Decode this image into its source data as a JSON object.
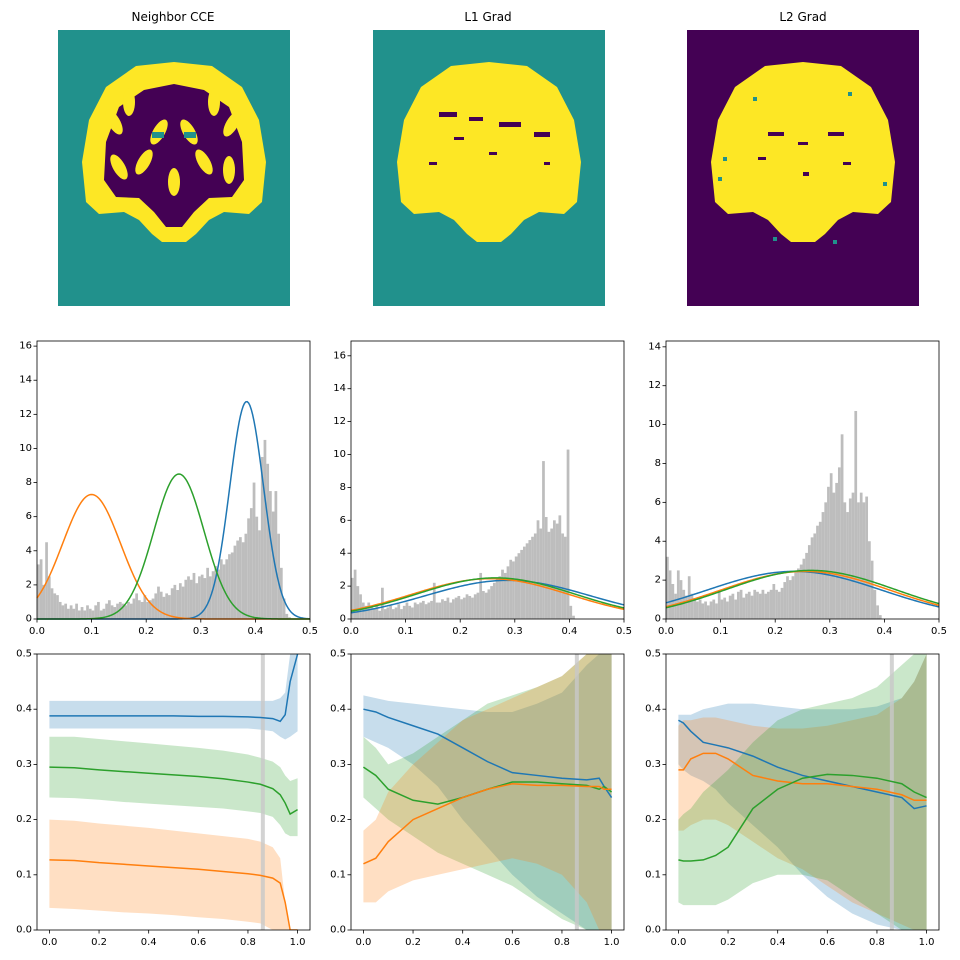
{
  "panel_titles": [
    "Neighbor CCE",
    "L1 Grad",
    "L2 Grad"
  ],
  "colors": {
    "blue": "#1f77b4",
    "orange": "#ff7f0e",
    "green": "#2ca02c",
    "hist_gray": "#bdbdbd",
    "viridis_dark": "#440154",
    "viridis_teal": "#21918c",
    "viridis_yellow": "#fde725",
    "threshold_line": "#c8c8c8"
  },
  "segmentation_maps": [
    {
      "background": "teal",
      "brain_fill": "yellow",
      "inner_structure": "dark"
    },
    {
      "background": "teal",
      "brain_fill": "yellow",
      "inner_structure": "dark-sparse"
    },
    {
      "background": "dark",
      "brain_fill": "yellow",
      "inner_structure": "dark-sparse"
    }
  ],
  "chart_data": [
    {
      "type": "bar+line",
      "panel": "Neighbor CCE histogram",
      "xlim": [
        0,
        0.5
      ],
      "ylim": [
        0,
        16.3
      ],
      "xticks": [
        "0.0",
        "0.1",
        "0.2",
        "0.3",
        "0.4",
        "0.5"
      ],
      "yticks": [
        "0",
        "2",
        "4",
        "6",
        "8",
        "10",
        "12",
        "14",
        "16"
      ],
      "gaussians": [
        {
          "color": "blue",
          "mean": 0.384,
          "sd": 0.031,
          "peak": 12.75
        },
        {
          "color": "orange",
          "mean": 0.1,
          "sd": 0.053,
          "peak": 7.3
        },
        {
          "color": "green",
          "mean": 0.26,
          "sd": 0.046,
          "peak": 8.5
        }
      ],
      "histogram_values": [
        3.2,
        3.5,
        2.0,
        4.5,
        2.5,
        1.8,
        1.5,
        1.4,
        1.0,
        0.8,
        0.9,
        0.6,
        0.8,
        0.6,
        0.9,
        0.5,
        0.7,
        0.5,
        0.8,
        0.6,
        0.5,
        0.8,
        1.0,
        0.5,
        0.6,
        0.9,
        1.1,
        0.8,
        0.7,
        0.9,
        1.0,
        0.9,
        0.8,
        1.0,
        0.9,
        1.2,
        1.5,
        1.1,
        1.0,
        1.4,
        1.0,
        1.1,
        1.2,
        1.5,
        1.9,
        1.6,
        1.3,
        1.5,
        1.4,
        1.8,
        2.0,
        1.7,
        2.1,
        1.9,
        2.3,
        2.5,
        2.3,
        2.7,
        2.1,
        2.5,
        2.6,
        2.4,
        3.0,
        2.5,
        2.8,
        3.1,
        2.9,
        3.5,
        3.2,
        3.5,
        3.8,
        3.9,
        4.3,
        4.6,
        4.8,
        4.5,
        5.0,
        5.9,
        6.5,
        8.0,
        6.0,
        5.2,
        9.5,
        10.5,
        9.1,
        7.5,
        6.3,
        7.5,
        5.0,
        3.0,
        1.2,
        0.3,
        0.1,
        0.0,
        0.0,
        0.0,
        0.0,
        0.0,
        0.0,
        0.0
      ]
    },
    {
      "type": "bar+line",
      "panel": "L1 Grad histogram",
      "xlim": [
        0,
        0.5
      ],
      "ylim": [
        0,
        16.9
      ],
      "xticks": [
        "0.0",
        "0.1",
        "0.2",
        "0.3",
        "0.4",
        "0.5"
      ],
      "yticks": [
        "0",
        "2",
        "4",
        "6",
        "8",
        "10",
        "12",
        "14",
        "16"
      ],
      "gaussians": [
        {
          "color": "blue",
          "mean": 0.287,
          "sd": 0.15,
          "peak": 2.35
        },
        {
          "color": "orange",
          "mean": 0.255,
          "sd": 0.145,
          "peak": 2.45
        },
        {
          "color": "green",
          "mean": 0.265,
          "sd": 0.145,
          "peak": 2.5
        }
      ],
      "histogram_values": [
        2.5,
        3.0,
        2.0,
        1.5,
        1.0,
        0.8,
        1.0,
        0.7,
        0.6,
        0.9,
        0.5,
        1.9,
        0.6,
        0.7,
        0.8,
        0.6,
        0.7,
        0.9,
        0.6,
        0.8,
        1.0,
        0.8,
        0.7,
        1.0,
        0.9,
        1.0,
        1.1,
        0.9,
        1.0,
        1.1,
        2.2,
        1.0,
        1.0,
        1.2,
        1.1,
        1.3,
        1.0,
        1.2,
        1.3,
        1.4,
        1.2,
        1.3,
        1.5,
        1.4,
        1.3,
        1.5,
        1.6,
        2.8,
        1.7,
        1.6,
        1.8,
        2.0,
        2.2,
        2.5,
        2.6,
        3.0,
        2.8,
        3.2,
        3.6,
        3.5,
        3.8,
        4.0,
        4.2,
        4.4,
        4.6,
        4.8,
        5.0,
        5.2,
        6.0,
        5.5,
        9.6,
        6.2,
        5.3,
        5.5,
        6.0,
        5.8,
        6.3,
        5.2,
        5.0,
        10.3,
        0.8,
        0.2,
        0.0,
        0.0,
        0.0,
        0.0,
        0.0,
        0.0,
        0.0,
        0.0,
        0.0,
        0.0,
        0.0,
        0.0,
        0.0,
        0.0,
        0.0,
        0.0,
        0.0,
        0.0
      ]
    },
    {
      "type": "bar+line",
      "panel": "L2 Grad histogram",
      "xlim": [
        0,
        0.5
      ],
      "ylim": [
        0,
        14.3
      ],
      "xticks": [
        "0.0",
        "0.1",
        "0.2",
        "0.3",
        "0.4",
        "0.5"
      ],
      "yticks": [
        "0",
        "2",
        "4",
        "6",
        "8",
        "10",
        "12",
        "14"
      ],
      "gaussians": [
        {
          "color": "blue",
          "mean": 0.235,
          "sd": 0.16,
          "peak": 2.45
        },
        {
          "color": "orange",
          "mean": 0.255,
          "sd": 0.155,
          "peak": 2.45
        },
        {
          "color": "green",
          "mean": 0.265,
          "sd": 0.155,
          "peak": 2.5
        }
      ],
      "histogram_values": [
        3.2,
        2.5,
        1.8,
        1.3,
        2.5,
        2.0,
        1.5,
        1.2,
        2.2,
        1.3,
        1.0,
        0.9,
        1.0,
        0.8,
        0.9,
        0.7,
        0.9,
        1.0,
        0.8,
        1.4,
        1.0,
        1.1,
        0.9,
        1.2,
        1.3,
        1.0,
        1.4,
        1.5,
        1.1,
        1.3,
        1.4,
        1.2,
        1.5,
        1.4,
        1.3,
        1.5,
        1.3,
        1.4,
        1.5,
        1.8,
        1.5,
        1.4,
        1.6,
        1.9,
        2.2,
        2.0,
        2.2,
        2.4,
        2.6,
        2.8,
        3.1,
        3.4,
        3.8,
        4.2,
        4.4,
        4.8,
        5.0,
        5.5,
        6.0,
        6.8,
        7.5,
        6.5,
        7.0,
        7.8,
        9.5,
        6.0,
        5.5,
        6.2,
        6.5,
        10.7,
        6.0,
        6.5,
        6.0,
        6.3,
        4.0,
        3.0,
        1.5,
        0.7,
        0.2,
        0.0,
        0.0,
        0.0,
        0.0,
        0.0,
        0.0,
        0.0,
        0.0,
        0.0,
        0.0,
        0.0,
        0.0,
        0.0,
        0.0,
        0.0,
        0.0,
        0.0,
        0.0,
        0.0,
        0.0,
        0.0
      ]
    },
    {
      "type": "line+band",
      "panel": "Neighbor CCE parameter trace",
      "xlim": [
        -0.05,
        1.05
      ],
      "ylim": [
        0,
        0.5
      ],
      "xticks": [
        "0.0",
        "0.2",
        "0.4",
        "0.6",
        "0.8",
        "1.0"
      ],
      "yticks": [
        "0.0",
        "0.1",
        "0.2",
        "0.3",
        "0.4",
        "0.5"
      ],
      "threshold_x": 0.86,
      "x": [
        0,
        0.1,
        0.2,
        0.3,
        0.4,
        0.5,
        0.6,
        0.7,
        0.8,
        0.85,
        0.9,
        0.93,
        0.95,
        0.97,
        1.0
      ],
      "series": [
        {
          "color": "blue",
          "mean": [
            0.388,
            0.388,
            0.388,
            0.388,
            0.388,
            0.388,
            0.387,
            0.387,
            0.386,
            0.385,
            0.383,
            0.378,
            0.39,
            0.45,
            0.5
          ],
          "upper": [
            0.415,
            0.415,
            0.415,
            0.415,
            0.415,
            0.415,
            0.415,
            0.415,
            0.415,
            0.415,
            0.415,
            0.42,
            0.43,
            0.5,
            0.5
          ],
          "lower": [
            0.365,
            0.365,
            0.365,
            0.365,
            0.365,
            0.365,
            0.365,
            0.365,
            0.365,
            0.363,
            0.36,
            0.35,
            0.345,
            0.35,
            0.36
          ]
        },
        {
          "color": "green",
          "mean": [
            0.295,
            0.294,
            0.29,
            0.287,
            0.284,
            0.281,
            0.278,
            0.274,
            0.268,
            0.264,
            0.256,
            0.245,
            0.23,
            0.21,
            0.218
          ],
          "upper": [
            0.35,
            0.35,
            0.346,
            0.342,
            0.338,
            0.334,
            0.33,
            0.325,
            0.318,
            0.312,
            0.305,
            0.295,
            0.28,
            0.27,
            0.275
          ],
          "lower": [
            0.24,
            0.239,
            0.236,
            0.232,
            0.229,
            0.226,
            0.223,
            0.22,
            0.215,
            0.212,
            0.205,
            0.19,
            0.175,
            0.17,
            0.17
          ]
        },
        {
          "color": "orange",
          "mean": [
            0.127,
            0.126,
            0.122,
            0.119,
            0.116,
            0.113,
            0.11,
            0.106,
            0.102,
            0.099,
            0.094,
            0.085,
            0.05,
            0.0,
            0.0
          ],
          "upper": [
            0.2,
            0.198,
            0.193,
            0.189,
            0.185,
            0.18,
            0.175,
            0.17,
            0.165,
            0.16,
            0.15,
            0.13,
            0.05,
            0.0,
            0.0
          ],
          "lower": [
            0.04,
            0.038,
            0.035,
            0.032,
            0.03,
            0.027,
            0.023,
            0.02,
            0.015,
            0.012,
            0.0,
            0.0,
            0.0,
            0.0,
            0.0
          ]
        }
      ]
    },
    {
      "type": "line+band",
      "panel": "L1 Grad parameter trace",
      "xlim": [
        -0.05,
        1.05
      ],
      "ylim": [
        0,
        0.5
      ],
      "xticks": [
        "0.0",
        "0.2",
        "0.4",
        "0.6",
        "0.8",
        "1.0"
      ],
      "yticks": [
        "0.0",
        "0.1",
        "0.2",
        "0.3",
        "0.4",
        "0.5"
      ],
      "threshold_x": 0.86,
      "x": [
        0,
        0.05,
        0.1,
        0.2,
        0.3,
        0.4,
        0.5,
        0.6,
        0.7,
        0.8,
        0.9,
        0.95,
        0.97,
        1.0
      ],
      "series": [
        {
          "color": "blue",
          "mean": [
            0.4,
            0.395,
            0.385,
            0.37,
            0.355,
            0.33,
            0.305,
            0.285,
            0.28,
            0.275,
            0.272,
            0.275,
            0.26,
            0.24
          ],
          "upper": [
            0.425,
            0.42,
            0.415,
            0.41,
            0.405,
            0.4,
            0.395,
            0.395,
            0.41,
            0.43,
            0.48,
            0.5,
            0.5,
            0.5
          ],
          "lower": [
            0.35,
            0.34,
            0.33,
            0.3,
            0.26,
            0.2,
            0.15,
            0.1,
            0.06,
            0.03,
            0.0,
            0.0,
            0.0,
            0.0
          ]
        },
        {
          "color": "green",
          "mean": [
            0.295,
            0.28,
            0.255,
            0.235,
            0.228,
            0.24,
            0.255,
            0.268,
            0.268,
            0.265,
            0.262,
            0.255,
            0.26,
            0.25
          ],
          "upper": [
            0.35,
            0.33,
            0.3,
            0.32,
            0.35,
            0.38,
            0.41,
            0.425,
            0.44,
            0.46,
            0.5,
            0.5,
            0.5,
            0.5
          ],
          "lower": [
            0.24,
            0.22,
            0.2,
            0.17,
            0.14,
            0.12,
            0.1,
            0.08,
            0.05,
            0.02,
            0.0,
            0.0,
            0.0,
            0.0
          ]
        },
        {
          "color": "orange",
          "mean": [
            0.12,
            0.13,
            0.16,
            0.2,
            0.22,
            0.24,
            0.255,
            0.265,
            0.262,
            0.262,
            0.26,
            0.26,
            0.255,
            0.255
          ],
          "upper": [
            0.18,
            0.2,
            0.25,
            0.3,
            0.34,
            0.38,
            0.4,
            0.42,
            0.44,
            0.46,
            0.5,
            0.5,
            0.5,
            0.5
          ],
          "lower": [
            0.05,
            0.05,
            0.07,
            0.09,
            0.1,
            0.11,
            0.12,
            0.13,
            0.12,
            0.1,
            0.05,
            0.0,
            0.0,
            0.0
          ]
        }
      ]
    },
    {
      "type": "line+band",
      "panel": "L2 Grad parameter trace",
      "xlim": [
        -0.05,
        1.05
      ],
      "ylim": [
        0,
        0.5
      ],
      "xticks": [
        "0.0",
        "0.2",
        "0.4",
        "0.6",
        "0.8",
        "1.0"
      ],
      "yticks": [
        "0.0",
        "0.1",
        "0.2",
        "0.3",
        "0.4",
        "0.5"
      ],
      "threshold_x": 0.86,
      "x": [
        0,
        0.02,
        0.05,
        0.1,
        0.15,
        0.2,
        0.3,
        0.4,
        0.5,
        0.6,
        0.7,
        0.8,
        0.9,
        0.95,
        1.0
      ],
      "series": [
        {
          "color": "blue",
          "mean": [
            0.38,
            0.375,
            0.36,
            0.34,
            0.335,
            0.33,
            0.315,
            0.295,
            0.28,
            0.27,
            0.26,
            0.25,
            0.24,
            0.22,
            0.225
          ],
          "upper": [
            0.39,
            0.39,
            0.39,
            0.4,
            0.405,
            0.41,
            0.41,
            0.405,
            0.4,
            0.4,
            0.4,
            0.405,
            0.42,
            0.45,
            0.5
          ],
          "lower": [
            0.3,
            0.29,
            0.28,
            0.27,
            0.255,
            0.23,
            0.19,
            0.15,
            0.1,
            0.06,
            0.03,
            0.01,
            0.0,
            0.0,
            0.0
          ]
        },
        {
          "color": "orange",
          "mean": [
            0.29,
            0.29,
            0.31,
            0.32,
            0.32,
            0.31,
            0.28,
            0.27,
            0.265,
            0.265,
            0.26,
            0.255,
            0.245,
            0.235,
            0.235
          ],
          "upper": [
            0.37,
            0.38,
            0.38,
            0.385,
            0.385,
            0.38,
            0.37,
            0.365,
            0.365,
            0.37,
            0.38,
            0.39,
            0.42,
            0.45,
            0.5
          ],
          "lower": [
            0.18,
            0.18,
            0.19,
            0.2,
            0.2,
            0.19,
            0.16,
            0.13,
            0.11,
            0.08,
            0.05,
            0.03,
            0.01,
            0.0,
            0.0
          ]
        },
        {
          "color": "green",
          "mean": [
            0.127,
            0.125,
            0.125,
            0.127,
            0.135,
            0.15,
            0.22,
            0.255,
            0.275,
            0.282,
            0.28,
            0.275,
            0.265,
            0.25,
            0.24
          ],
          "upper": [
            0.2,
            0.21,
            0.22,
            0.25,
            0.27,
            0.29,
            0.34,
            0.38,
            0.4,
            0.41,
            0.42,
            0.44,
            0.48,
            0.5,
            0.5
          ],
          "lower": [
            0.05,
            0.045,
            0.045,
            0.045,
            0.045,
            0.055,
            0.085,
            0.1,
            0.1,
            0.09,
            0.06,
            0.03,
            0.0,
            0.0,
            0.0
          ]
        }
      ]
    }
  ]
}
